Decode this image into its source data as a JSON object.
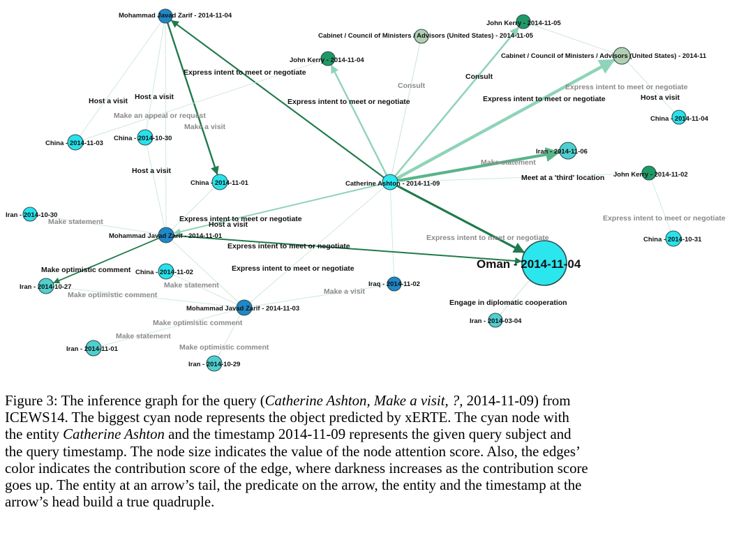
{
  "colors": {
    "cyan": "#27e2ec",
    "query_cyan": "#2ce6f0",
    "big_node": "#2ce6ee",
    "teal": "#4fcfd0",
    "blue": "#1f88c8",
    "dark_green": "#1f9a67",
    "grey_green": "#b2cfb2",
    "edge_dark": "#1f7a4c",
    "edge_mid": "#59b48a",
    "edge_light": "#8fd4b8",
    "edge_faint": "#cfe8dc"
  },
  "nodes": [
    {
      "id": "n1",
      "label": "Mohammad Javad Zarif - 2014-11-04",
      "color": "blue"
    },
    {
      "id": "n2",
      "label": "Cabinet / Council of Ministers / Advisors (United States) - 2014-11-05",
      "color": "grey_green"
    },
    {
      "id": "n3",
      "label": "John Kerry - 2014-11-05",
      "color": "dark_green"
    },
    {
      "id": "n4",
      "label": "John Kerry - 2014-11-04",
      "color": "dark_green"
    },
    {
      "id": "n5",
      "label": "Cabinet / Council of Ministers / Advisors (United States) - 2014-11",
      "color": "grey_green"
    },
    {
      "id": "n6",
      "label": "China - 2014-11-04",
      "color": "cyan"
    },
    {
      "id": "n7",
      "label": "China - 2014-11-03",
      "color": "cyan"
    },
    {
      "id": "n8",
      "label": "China - 2014-10-30",
      "color": "cyan"
    },
    {
      "id": "n9",
      "label": "Iran - 2014-11-06",
      "color": "teal"
    },
    {
      "id": "n10",
      "label": "China - 2014-11-01",
      "color": "cyan"
    },
    {
      "id": "n11",
      "label": "Catherine Ashton - 2014-11-09",
      "color": "query_cyan"
    },
    {
      "id": "n12",
      "label": "John Kerry - 2014-11-02",
      "color": "dark_green"
    },
    {
      "id": "n13",
      "label": "Iran - 2014-10-30",
      "color": "cyan"
    },
    {
      "id": "n14",
      "label": "Mohammad Javad Zarif - 2014-11-01",
      "color": "blue"
    },
    {
      "id": "n15",
      "label": "China - 2014-10-31",
      "color": "cyan"
    },
    {
      "id": "n16",
      "label": "Oman - 2014-11-04",
      "color": "big_node"
    },
    {
      "id": "n17",
      "label": "China - 2014-11-02",
      "color": "cyan"
    },
    {
      "id": "n18",
      "label": "Iran - 2014-10-27",
      "color": "teal"
    },
    {
      "id": "n19",
      "label": "Iraq - 2014-11-02",
      "color": "blue"
    },
    {
      "id": "n20",
      "label": "Mohammad Javad Zarif - 2014-11-03",
      "color": "blue"
    },
    {
      "id": "n21",
      "label": "Iran - 2014-03-04",
      "color": "teal"
    },
    {
      "id": "n22",
      "label": "Iran - 2014-11-01",
      "color": "teal"
    },
    {
      "id": "n23",
      "label": "Iran - 2014-10-29",
      "color": "teal"
    }
  ],
  "edge_labels": [
    {
      "id": "e1",
      "text": "Express intent to meet or negotiate",
      "tone": "dark"
    },
    {
      "id": "e2",
      "text": "Consult",
      "tone": "grey"
    },
    {
      "id": "e3",
      "text": "Consult",
      "tone": "dark"
    },
    {
      "id": "e4",
      "text": "Express intent to meet or negotiate",
      "tone": "dark"
    },
    {
      "id": "e5",
      "text": "Express intent to meet or negotiate",
      "tone": "dark"
    },
    {
      "id": "e6",
      "text": "Express intent to meet or negotiate",
      "tone": "grey"
    },
    {
      "id": "e7",
      "text": "Host a visit",
      "tone": "dark"
    },
    {
      "id": "e8",
      "text": "Host a visit",
      "tone": "dark"
    },
    {
      "id": "e9",
      "text": "Host a visit",
      "tone": "dark"
    },
    {
      "id": "e10",
      "text": "Make an appeal or request",
      "tone": "grey"
    },
    {
      "id": "e11",
      "text": "Make a visit",
      "tone": "grey"
    },
    {
      "id": "e12",
      "text": "Host a visit",
      "tone": "dark"
    },
    {
      "id": "e13",
      "text": "Make statement",
      "tone": "grey"
    },
    {
      "id": "e14",
      "text": "Meet at a 'third' location",
      "tone": "dark"
    },
    {
      "id": "e15",
      "text": "Express intent to meet or negotiate",
      "tone": "grey"
    },
    {
      "id": "e16",
      "text": "Make statement",
      "tone": "grey"
    },
    {
      "id": "e17",
      "text": "Express intent to meet or negotiate",
      "tone": "dark"
    },
    {
      "id": "e18",
      "text": "Host a visit",
      "tone": "dark"
    },
    {
      "id": "e19",
      "text": "Express intent to meet or negotiate",
      "tone": "grey"
    },
    {
      "id": "e20",
      "text": "Express intent to meet or negotiate",
      "tone": "dark"
    },
    {
      "id": "e21",
      "text": "Make optimistic comment",
      "tone": "dark"
    },
    {
      "id": "e22",
      "text": "Express intent to meet or negotiate",
      "tone": "dark"
    },
    {
      "id": "e23",
      "text": "Make statement",
      "tone": "grey"
    },
    {
      "id": "e24",
      "text": "Make optimistic comment",
      "tone": "grey"
    },
    {
      "id": "e25",
      "text": "Make a visit",
      "tone": "grey"
    },
    {
      "id": "e26",
      "text": "Engage in diplomatic cooperation",
      "tone": "dark"
    },
    {
      "id": "e27",
      "text": "Make optimistic comment",
      "tone": "grey"
    },
    {
      "id": "e28",
      "text": "Make statement",
      "tone": "grey"
    },
    {
      "id": "e29",
      "text": "Make optimistic comment",
      "tone": "grey"
    }
  ],
  "caption": {
    "lines": [
      [
        {
          "t": "Figure 3: The inference graph for the query ("
        },
        {
          "t": "Catherine Ashton, Make a visit, ?,",
          "i": true
        },
        {
          "t": " 2014-11-09) from"
        }
      ],
      [
        {
          "t": "ICEWS14. The biggest cyan node represents the object predicted by xERTE. The cyan node with"
        }
      ],
      [
        {
          "t": "the entity "
        },
        {
          "t": "Catherine Ashton",
          "i": true
        },
        {
          "t": " and the timestamp 2014-11-09 represents the given query subject and"
        }
      ],
      [
        {
          "t": "the query timestamp. The node size indicates the value of the node attention score. Also, the edges’"
        }
      ],
      [
        {
          "t": "color indicates the contribution score of the edge, where darkness increases as the contribution score"
        }
      ],
      [
        {
          "t": "goes up. The entity at an arrow’s tail, the predicate on the arrow, the entity and the timestamp at the"
        }
      ],
      [
        {
          "t": "arrow’s head build a true quadruple."
        }
      ]
    ]
  }
}
